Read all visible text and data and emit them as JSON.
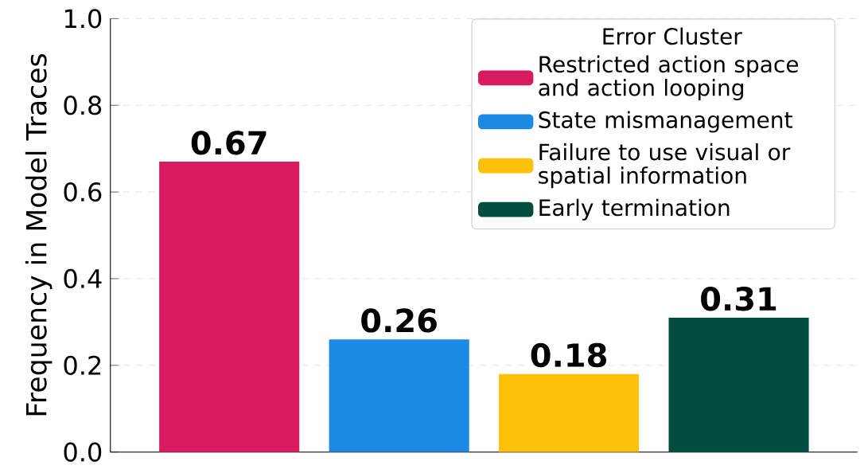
{
  "chart_data": {
    "type": "bar",
    "ylabel": "Frequency in Model Traces",
    "legend_title": "Error Cluster",
    "categories": [
      null,
      null,
      null,
      null
    ],
    "series": [
      {
        "name": "Restricted action space and action looping",
        "color": "#d81b60",
        "values": [
          0.67,
          null,
          null,
          null
        ]
      },
      {
        "name": "State mismanagement",
        "color": "#1e88e5",
        "values": [
          null,
          0.26,
          null,
          null
        ]
      },
      {
        "name": "Failure to use visual or spatial information",
        "color": "#ffc107",
        "values": [
          null,
          null,
          0.18,
          null
        ]
      },
      {
        "name": "Early termination",
        "color": "#004d40",
        "values": [
          null,
          null,
          null,
          0.31
        ]
      }
    ],
    "ylim": [
      0,
      1
    ],
    "yticks": [
      {
        "value": 0,
        "label": "0.0"
      },
      0.2,
      0.4,
      0.6,
      0.8,
      {
        "value": 1,
        "label": "1.0"
      }
    ],
    "grid": "y",
    "legend": "top right",
    "data_labels": true
  }
}
